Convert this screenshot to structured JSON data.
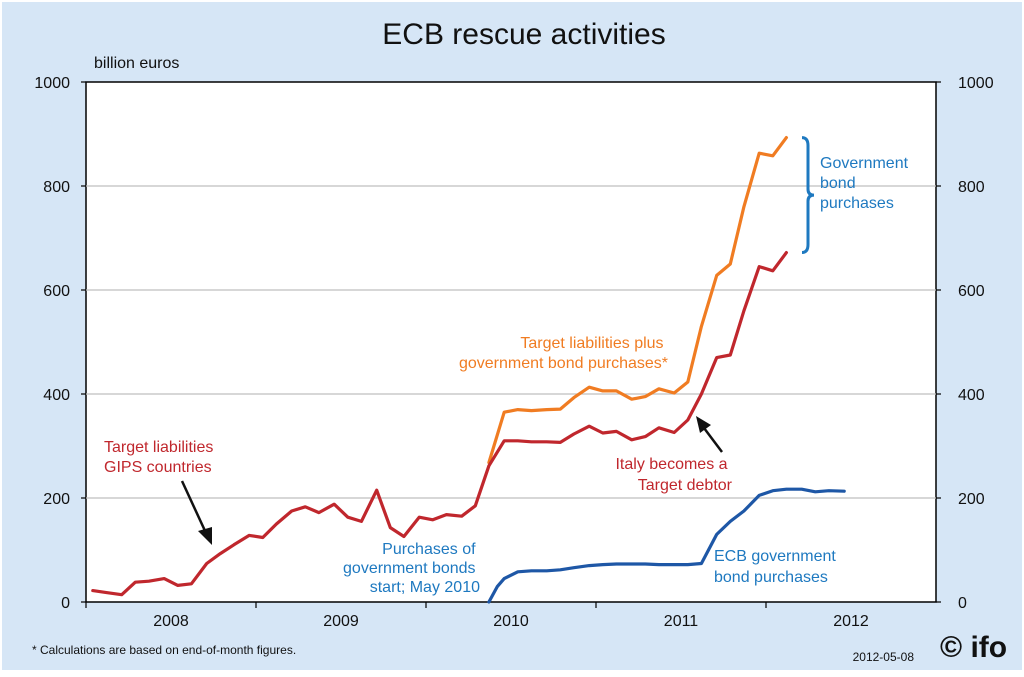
{
  "chart_data": {
    "type": "line",
    "title": "ECB rescue activities",
    "ylabel": "billion euros",
    "ylim": [
      0,
      1000
    ],
    "yticks": [
      0,
      200,
      400,
      600,
      800,
      1000
    ],
    "yticks_right": [
      0,
      200,
      400,
      600,
      800,
      1000
    ],
    "xlim": [
      2007.5,
      2012.5
    ],
    "xtick_labels": [
      {
        "label": "2008",
        "x": 2008.0
      },
      {
        "label": "2009",
        "x": 2009.0
      },
      {
        "label": "2010",
        "x": 2010.0
      },
      {
        "label": "2011",
        "x": 2011.0
      },
      {
        "label": "2012",
        "x": 2012.0
      }
    ],
    "grid": true,
    "background": "#d6e6f6",
    "series": [
      {
        "id": "target-plus-bonds",
        "color": "#f07c22",
        "points": [
          [
            2009.87,
            268
          ],
          [
            2009.96,
            365
          ],
          [
            2010.04,
            370
          ],
          [
            2010.12,
            368
          ],
          [
            2010.21,
            370
          ],
          [
            2010.29,
            371
          ],
          [
            2010.37,
            393
          ],
          [
            2010.46,
            413
          ],
          [
            2010.54,
            406
          ],
          [
            2010.62,
            406
          ],
          [
            2010.71,
            390
          ],
          [
            2010.79,
            395
          ],
          [
            2010.87,
            410
          ],
          [
            2010.96,
            402
          ],
          [
            2011.04,
            423
          ],
          [
            2011.12,
            530
          ],
          [
            2011.21,
            628
          ],
          [
            2011.29,
            650
          ],
          [
            2011.37,
            760
          ],
          [
            2011.46,
            863
          ],
          [
            2011.54,
            858
          ],
          [
            2011.62,
            893
          ]
        ]
      },
      {
        "id": "target-liabilities-gips",
        "color": "#c0272d",
        "points": [
          [
            2007.54,
            22
          ],
          [
            2007.62,
            18
          ],
          [
            2007.71,
            14
          ],
          [
            2007.79,
            38
          ],
          [
            2007.87,
            40
          ],
          [
            2007.96,
            45
          ],
          [
            2008.04,
            32
          ],
          [
            2008.12,
            35
          ],
          [
            2008.21,
            74
          ],
          [
            2008.29,
            93
          ],
          [
            2008.37,
            110
          ],
          [
            2008.46,
            128
          ],
          [
            2008.54,
            124
          ],
          [
            2008.62,
            150
          ],
          [
            2008.71,
            175
          ],
          [
            2008.79,
            183
          ],
          [
            2008.87,
            172
          ],
          [
            2008.96,
            188
          ],
          [
            2009.04,
            163
          ],
          [
            2009.12,
            155
          ],
          [
            2009.21,
            215
          ],
          [
            2009.29,
            143
          ],
          [
            2009.37,
            126
          ],
          [
            2009.46,
            163
          ],
          [
            2009.54,
            158
          ],
          [
            2009.62,
            168
          ],
          [
            2009.71,
            165
          ],
          [
            2009.79,
            185
          ],
          [
            2009.87,
            262
          ],
          [
            2009.96,
            310
          ],
          [
            2010.04,
            310
          ],
          [
            2010.12,
            308
          ],
          [
            2010.21,
            308
          ],
          [
            2010.29,
            307
          ],
          [
            2010.37,
            323
          ],
          [
            2010.46,
            338
          ],
          [
            2010.54,
            325
          ],
          [
            2010.62,
            328
          ],
          [
            2010.71,
            312
          ],
          [
            2010.79,
            318
          ],
          [
            2010.87,
            335
          ],
          [
            2010.96,
            326
          ],
          [
            2011.04,
            350
          ],
          [
            2011.12,
            400
          ],
          [
            2011.21,
            470
          ],
          [
            2011.29,
            475
          ],
          [
            2011.37,
            560
          ],
          [
            2011.46,
            645
          ],
          [
            2011.54,
            637
          ],
          [
            2011.62,
            672
          ]
        ]
      },
      {
        "id": "ecb-bond-purchases",
        "color": "#1e57a6",
        "points": [
          [
            2009.87,
            0
          ],
          [
            2009.92,
            30
          ],
          [
            2009.96,
            45
          ],
          [
            2010.04,
            58
          ],
          [
            2010.12,
            60
          ],
          [
            2010.21,
            60
          ],
          [
            2010.29,
            62
          ],
          [
            2010.37,
            66
          ],
          [
            2010.46,
            70
          ],
          [
            2010.54,
            72
          ],
          [
            2010.62,
            73
          ],
          [
            2010.71,
            73
          ],
          [
            2010.79,
            73
          ],
          [
            2010.87,
            72
          ],
          [
            2010.96,
            72
          ],
          [
            2011.04,
            72
          ],
          [
            2011.12,
            74
          ],
          [
            2011.21,
            130
          ],
          [
            2011.29,
            155
          ],
          [
            2011.37,
            175
          ],
          [
            2011.46,
            205
          ],
          [
            2011.54,
            214
          ],
          [
            2011.62,
            217
          ],
          [
            2011.71,
            217
          ],
          [
            2011.79,
            212
          ],
          [
            2011.87,
            214
          ],
          [
            2011.96,
            213
          ]
        ]
      }
    ],
    "annotations": [
      {
        "id": "orange-label",
        "lines": [
          "Target liabilities plus",
          "government bond purchases*"
        ],
        "color": "#f07c22"
      },
      {
        "id": "red-label",
        "lines": [
          "Target liabilities",
          "GIPS countries"
        ],
        "color": "#c0272d"
      },
      {
        "id": "italy-label",
        "lines": [
          "Italy becomes a",
          "Target debtor"
        ],
        "color": "#c0272d"
      },
      {
        "id": "purchases-start-label",
        "lines": [
          "Purchases of",
          "government bonds",
          "start; May 2010"
        ],
        "color": "#1e79c0"
      },
      {
        "id": "ecb-label",
        "lines": [
          "ECB government",
          "bond purchases"
        ],
        "color": "#1e79c0"
      },
      {
        "id": "gov-bond-label",
        "lines": [
          "Government",
          "bond",
          "purchases"
        ],
        "color": "#1e79c0"
      }
    ],
    "brace": {
      "from": 672,
      "to": 893,
      "color": "#1e79c0"
    },
    "footnote": "* Calculations are based on end-of-month figures.",
    "date": "2012-05-08",
    "logo": "© ifo"
  }
}
